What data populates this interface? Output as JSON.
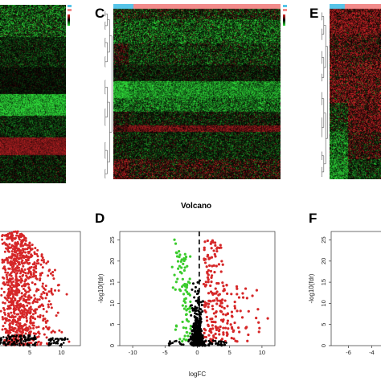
{
  "panels": {
    "C": {
      "letter": "C"
    },
    "D": {
      "letter": "D"
    },
    "E": {
      "letter": "E"
    },
    "F": {
      "letter": "F"
    }
  },
  "colors": {
    "heat_high": "#e0282a",
    "heat_low": "#2fe03a",
    "heat_mid": "#000000",
    "up": "#d62728",
    "down": "#3ccc2e",
    "ns": "#000000",
    "group_a": "#56c4e8",
    "group_b": "#f28b8b"
  },
  "chart_data": [
    {
      "type": "heatmap",
      "panel": "A (partial)",
      "title": "",
      "dendrogram": "none visible",
      "color_scale": [
        "#2fe03a",
        "#000000",
        "#e0282a"
      ]
    },
    {
      "type": "heatmap",
      "panel": "C",
      "title": "",
      "dendrogram": "rows",
      "group_bar": [
        "#56c4e8",
        "#f28b8b"
      ],
      "color_scale": [
        "#2fe03a",
        "#000000",
        "#e0282a"
      ]
    },
    {
      "type": "heatmap",
      "panel": "E",
      "title": "",
      "dendrogram": "rows",
      "group_bar": [
        "#56c4e8",
        "#f28b8b"
      ],
      "color_scale": [
        "#2fe03a",
        "#000000",
        "#e0282a"
      ]
    },
    {
      "type": "scatter",
      "panel": "B (partial)",
      "title": "",
      "xlabel": "",
      "ylabel": "",
      "x_ticks": [
        "5",
        "10"
      ],
      "xlim": [
        -1,
        13
      ],
      "ylim": [
        0,
        26
      ],
      "series": [
        {
          "color": "#d62728",
          "description_points": "dense up-regulated cloud, logFC 0-12, -log10(fdr) 0-26"
        },
        {
          "color": "#000000",
          "description_points": "non-significant near logFC 0-5, low fdr"
        }
      ]
    },
    {
      "type": "scatter",
      "panel": "D",
      "title": "Volcano",
      "xlabel": "logFC",
      "ylabel": "-log10(fdr)",
      "x_ticks": [
        "-10",
        "-5",
        "0",
        "5",
        "10"
      ],
      "y_ticks": [
        "0",
        "5",
        "10",
        "15",
        "20",
        "25"
      ],
      "xlim": [
        -12,
        12
      ],
      "ylim": [
        0,
        27
      ],
      "threshold_lines_x": [
        -1,
        1
      ],
      "series": [
        {
          "color": "#3ccc2e",
          "range_x": [
            -5,
            -1
          ],
          "range_y": [
            1,
            28
          ]
        },
        {
          "color": "#d62728",
          "range_x": [
            1,
            11
          ],
          "range_y": [
            1,
            26
          ]
        },
        {
          "color": "#000000",
          "range_x": [
            -1,
            1
          ],
          "range_y": [
            0,
            24
          ]
        }
      ]
    },
    {
      "type": "scatter",
      "panel": "F (partial)",
      "title": "",
      "xlabel": "",
      "ylabel": "-log10(fdr)",
      "x_ticks": [
        "-6",
        "-4"
      ],
      "y_ticks": [
        "0",
        "5",
        "10",
        "15",
        "20",
        "25"
      ],
      "ylim": [
        0,
        27
      ],
      "series": []
    }
  ]
}
